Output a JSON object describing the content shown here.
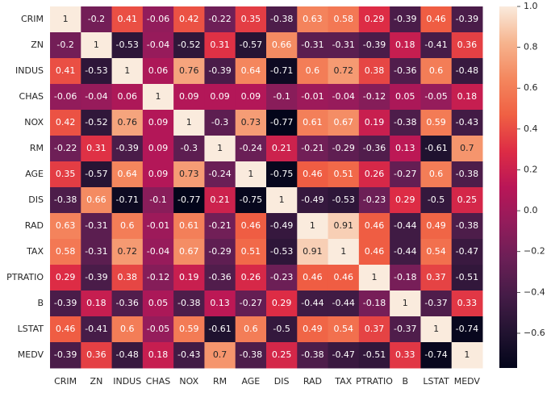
{
  "chart_data": {
    "type": "heatmap",
    "categories": [
      "CRIM",
      "ZN",
      "INDUS",
      "CHAS",
      "NOX",
      "RM",
      "AGE",
      "DIS",
      "RAD",
      "TAX",
      "PTRATIO",
      "B",
      "LSTAT",
      "MEDV"
    ],
    "y_categories": [
      "CRIM",
      "ZN",
      "INDUS",
      "CHAS",
      "NOX",
      "RM",
      "AGE",
      "DIS",
      "RAD",
      "TAX",
      "PTRATIO",
      "B",
      "LSTAT",
      "MEDV"
    ],
    "values": [
      [
        1,
        -0.2,
        0.41,
        -0.06,
        0.42,
        -0.22,
        0.35,
        -0.38,
        0.63,
        0.58,
        0.29,
        -0.39,
        0.46,
        -0.39
      ],
      [
        -0.2,
        1,
        -0.53,
        -0.04,
        -0.52,
        0.31,
        -0.57,
        0.66,
        -0.31,
        -0.31,
        -0.39,
        0.18,
        -0.41,
        0.36
      ],
      [
        0.41,
        -0.53,
        1,
        0.06,
        0.76,
        -0.39,
        0.64,
        -0.71,
        0.6,
        0.72,
        0.38,
        -0.36,
        0.6,
        -0.48
      ],
      [
        -0.06,
        -0.04,
        0.06,
        1,
        0.09,
        0.09,
        0.09,
        -0.1,
        -0.01,
        -0.04,
        -0.12,
        0.05,
        -0.05,
        0.18
      ],
      [
        0.42,
        -0.52,
        0.76,
        0.09,
        1,
        -0.3,
        0.73,
        -0.77,
        0.61,
        0.67,
        0.19,
        -0.38,
        0.59,
        -0.43
      ],
      [
        -0.22,
        0.31,
        -0.39,
        0.09,
        -0.3,
        1,
        -0.24,
        0.21,
        -0.21,
        -0.29,
        -0.36,
        0.13,
        -0.61,
        0.7
      ],
      [
        0.35,
        -0.57,
        0.64,
        0.09,
        0.73,
        -0.24,
        1,
        -0.75,
        0.46,
        0.51,
        0.26,
        -0.27,
        0.6,
        -0.38
      ],
      [
        -0.38,
        0.66,
        -0.71,
        -0.1,
        -0.77,
        0.21,
        -0.75,
        1,
        -0.49,
        -0.53,
        -0.23,
        0.29,
        -0.5,
        0.25
      ],
      [
        0.63,
        -0.31,
        0.6,
        -0.01,
        0.61,
        -0.21,
        0.46,
        -0.49,
        1,
        0.91,
        0.46,
        -0.44,
        0.49,
        -0.38
      ],
      [
        0.58,
        -0.31,
        0.72,
        -0.04,
        0.67,
        -0.29,
        0.51,
        -0.53,
        0.91,
        1,
        0.46,
        -0.44,
        0.54,
        -0.47
      ],
      [
        0.29,
        -0.39,
        0.38,
        -0.12,
        0.19,
        -0.36,
        0.26,
        -0.23,
        0.46,
        0.46,
        1,
        -0.18,
        0.37,
        -0.51
      ],
      [
        -0.39,
        0.18,
        -0.36,
        0.05,
        -0.38,
        0.13,
        -0.27,
        0.29,
        -0.44,
        -0.44,
        -0.18,
        1,
        -0.37,
        0.33
      ],
      [
        0.46,
        -0.41,
        0.6,
        -0.05,
        0.59,
        -0.61,
        0.6,
        -0.5,
        0.49,
        0.54,
        0.37,
        -0.37,
        1,
        -0.74
      ],
      [
        -0.39,
        0.36,
        -0.48,
        0.18,
        -0.43,
        0.7,
        -0.38,
        0.25,
        -0.38,
        -0.47,
        -0.51,
        0.33,
        -0.74,
        1
      ]
    ],
    "colormap": [
      "#03051a",
      "#221331",
      "#451c47",
      "#6a1f56",
      "#921c5b",
      "#b91657",
      "#dd2c45",
      "#f06043",
      "#f4875e",
      "#f6b48e",
      "#faebdd"
    ],
    "clim": [
      -0.77,
      1
    ],
    "cticks": [
      {
        "value": 1,
        "label": "1.0"
      },
      {
        "value": 0.8,
        "label": "0.8"
      },
      {
        "value": 0.6,
        "label": "0.6"
      },
      {
        "value": 0.4,
        "label": "0.4"
      },
      {
        "value": 0.2,
        "label": "0.2"
      },
      {
        "value": 0,
        "label": "0.0"
      },
      {
        "value": -0.2,
        "label": "−0.2"
      },
      {
        "value": -0.4,
        "label": "−0.4"
      },
      {
        "value": -0.6,
        "label": "−0.6"
      }
    ]
  }
}
